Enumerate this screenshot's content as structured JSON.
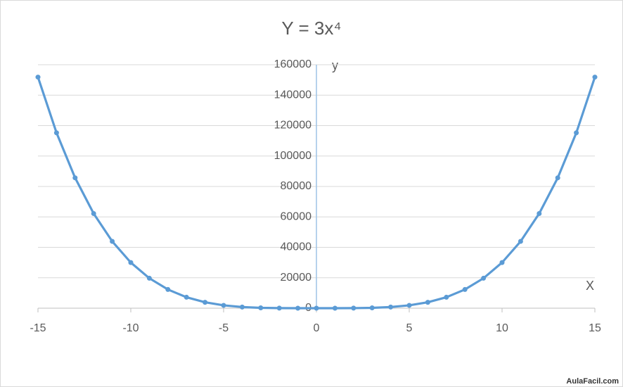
{
  "chart_data": {
    "type": "line",
    "title": "Y = 3x⁴",
    "x_label": "X",
    "y_label": "y",
    "x": [
      -15,
      -14,
      -13,
      -12,
      -11,
      -10,
      -9,
      -8,
      -7,
      -6,
      -5,
      -4,
      -3,
      -2,
      -1,
      0,
      1,
      2,
      3,
      4,
      5,
      6,
      7,
      8,
      9,
      10,
      11,
      12,
      13,
      14,
      15
    ],
    "series": [
      {
        "name": "Y = 3x⁴",
        "color": "#5b9bd5",
        "values": [
          151875,
          115248,
          85683,
          62208,
          43923,
          30000,
          19683,
          12288,
          7203,
          3888,
          1875,
          768,
          243,
          48,
          3,
          0,
          3,
          48,
          243,
          768,
          1875,
          3888,
          7203,
          12288,
          19683,
          30000,
          43923,
          62208,
          85683,
          115248,
          151875
        ]
      }
    ],
    "xlim": [
      -15,
      15
    ],
    "xticks": [
      -15,
      -10,
      -5,
      0,
      5,
      10,
      15
    ],
    "ylim": [
      0,
      160000
    ],
    "yticks": [
      0,
      20000,
      40000,
      60000,
      80000,
      100000,
      120000,
      140000,
      160000
    ],
    "grid": true,
    "markers": true,
    "watermark": "AulaFacil.com"
  }
}
